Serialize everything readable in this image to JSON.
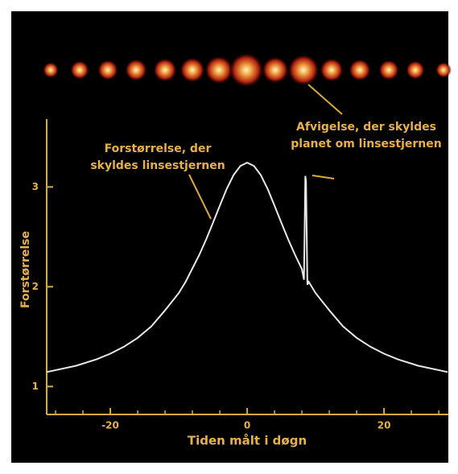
{
  "chart_data": {
    "type": "line",
    "x_label": "Tiden målt i døgn",
    "y_label": "Forstørrelse",
    "annotations": [
      {
        "lines": [
          "Forstørrelse, der",
          "skyldes linsestjernen"
        ]
      },
      {
        "lines": [
          "Afvigelse, der skyldes",
          "planet om linsestjernen"
        ]
      }
    ],
    "series": [
      {
        "color": "#e8e8e8",
        "x": [
          -29.3,
          -25,
          -22,
          -20,
          -18,
          -16,
          -14,
          -12,
          -10,
          -9,
          -7,
          -6,
          -5,
          -4,
          -3,
          -2,
          -1,
          0,
          1,
          2,
          3,
          4,
          5,
          6,
          7,
          8,
          8.3,
          8.5,
          8.6,
          8.8,
          9,
          10,
          12,
          14,
          16,
          18,
          20,
          22,
          25,
          29.3
        ],
        "values": [
          1.145,
          1.208,
          1.273,
          1.329,
          1.399,
          1.488,
          1.603,
          1.764,
          1.936,
          2.049,
          2.319,
          2.473,
          2.641,
          2.812,
          2.979,
          3.118,
          3.21,
          3.244,
          3.21,
          3.118,
          2.979,
          2.812,
          2.641,
          2.473,
          2.319,
          2.176,
          2.07,
          3.11,
          3.05,
          2.02,
          2.049,
          1.936,
          1.764,
          1.603,
          1.488,
          1.399,
          1.329,
          1.273,
          1.208,
          1.145
        ]
      }
    ],
    "xlim": [
      -29.3,
      29.4
    ],
    "xticks": [
      -20,
      0,
      20
    ],
    "xminorticks": [
      -28,
      -24,
      -16,
      -12,
      -8,
      -4,
      4,
      8,
      12,
      16,
      24,
      28
    ],
    "ylim": [
      0.72,
      3.68
    ],
    "yticks": [
      1,
      2,
      3
    ],
    "axis_color": "#d9a93d",
    "text_color": "#e8b04a"
  }
}
